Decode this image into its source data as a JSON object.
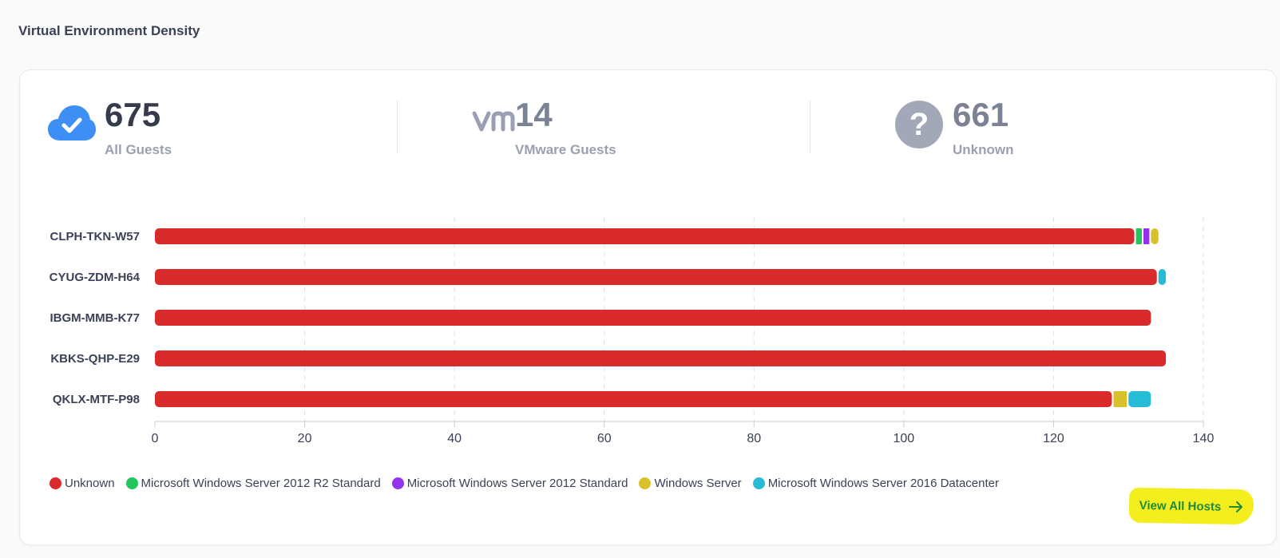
{
  "section_title": "Virtual Environment Density",
  "stats": [
    {
      "value": "675",
      "label": "All Guests",
      "icon": "cloud-check-icon"
    },
    {
      "value": "14",
      "label": "VMware Guests",
      "icon": "vm-icon"
    },
    {
      "value": "661",
      "label": "Unknown",
      "icon": "question-icon"
    }
  ],
  "view_all_label": "View All Hosts",
  "colors": {
    "primary_text": "#3b4256",
    "muted_text": "#9aa0b2",
    "accent_blue": "#3d8ef5",
    "highlight": "#f5ee1f",
    "link_green": "#1e8a3a"
  },
  "chart_data": {
    "type": "bar",
    "orientation": "horizontal",
    "stacked": true,
    "categories": [
      "CLPH-TKN-W57",
      "CYUG-ZDM-H64",
      "IBGM-MMB-K77",
      "KBKS-QHP-E29",
      "QKLX-MTF-P98"
    ],
    "series": [
      {
        "name": "Unknown",
        "color": "#d92b2b",
        "values": [
          131,
          134,
          133,
          135,
          128
        ]
      },
      {
        "name": "Microsoft Windows Server 2012 R2 Standard",
        "color": "#22c55e",
        "values": [
          1,
          0,
          0,
          0,
          0
        ]
      },
      {
        "name": "Microsoft Windows Server 2012 Standard",
        "color": "#9333ea",
        "values": [
          1,
          0,
          0,
          0,
          0
        ]
      },
      {
        "name": "Windows Server",
        "color": "#d9c12b",
        "values": [
          1,
          0,
          0,
          0,
          2
        ]
      },
      {
        "name": "Microsoft Windows Server 2016 Datacenter",
        "color": "#26bcd7",
        "values": [
          0,
          1,
          0,
          0,
          3
        ]
      }
    ],
    "xlim": [
      0,
      140
    ],
    "xticks": [
      "0",
      "20",
      "40",
      "60",
      "80",
      "100",
      "120",
      "140"
    ],
    "grid": true,
    "legend_position": "bottom-left"
  }
}
